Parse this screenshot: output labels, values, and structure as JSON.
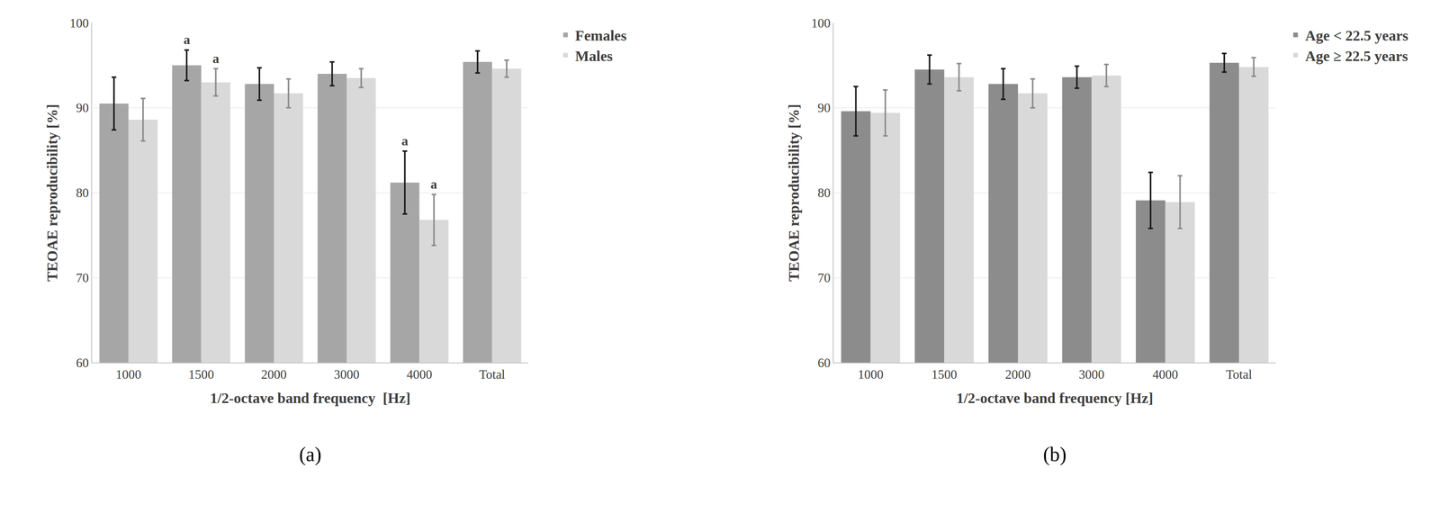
{
  "chart_data": [
    {
      "type": "bar",
      "title": "(a)",
      "x_label": "1/2-octave band frequency  [Hz]",
      "y_label": "TEOAE reproducibility [%]",
      "categories": [
        "1000",
        "1500",
        "2000",
        "3000",
        "4000",
        "Total"
      ],
      "series": [
        {
          "name": "Females",
          "color": "#a6a6a6",
          "values": [
            90.5,
            95.0,
            92.8,
            94.0,
            81.2,
            95.4
          ],
          "error": [
            3.1,
            1.8,
            1.9,
            1.4,
            3.7,
            1.3
          ]
        },
        {
          "name": "Males",
          "color": "#d9d9d9",
          "values": [
            88.6,
            93.0,
            91.7,
            93.5,
            76.8,
            94.6
          ],
          "error": [
            2.5,
            1.6,
            1.7,
            1.1,
            3.0,
            1.0
          ]
        }
      ],
      "annotations": [
        {
          "category": "1500",
          "series": "Females",
          "text": "a"
        },
        {
          "category": "1500",
          "series": "Males",
          "text": "a"
        },
        {
          "category": "4000",
          "series": "Females",
          "text": "a"
        },
        {
          "category": "4000",
          "series": "Males",
          "text": "a"
        }
      ],
      "ylim": [
        60,
        100
      ],
      "yticks": [
        60,
        70,
        80,
        90,
        100
      ],
      "grid": true,
      "legend": "right"
    },
    {
      "type": "bar",
      "title": "(b)",
      "x_label": "1/2-octave band frequency [Hz]",
      "y_label": "TEOAE reproducibility [%]",
      "categories": [
        "1000",
        "1500",
        "2000",
        "3000",
        "4000",
        "Total"
      ],
      "series": [
        {
          "name": "Age < 22.5 years",
          "color": "#8c8c8c",
          "values": [
            89.6,
            94.5,
            92.8,
            93.6,
            79.1,
            95.3
          ],
          "error": [
            2.9,
            1.7,
            1.8,
            1.3,
            3.3,
            1.1
          ]
        },
        {
          "name": "Age ≥ 22.5 years",
          "color": "#d9d9d9",
          "values": [
            89.4,
            93.6,
            91.7,
            93.8,
            78.9,
            94.8
          ],
          "error": [
            2.7,
            1.6,
            1.7,
            1.3,
            3.1,
            1.1
          ]
        }
      ],
      "ylim": [
        60,
        100
      ],
      "yticks": [
        60,
        70,
        80,
        90,
        100
      ],
      "grid": true,
      "legend": "right"
    }
  ]
}
